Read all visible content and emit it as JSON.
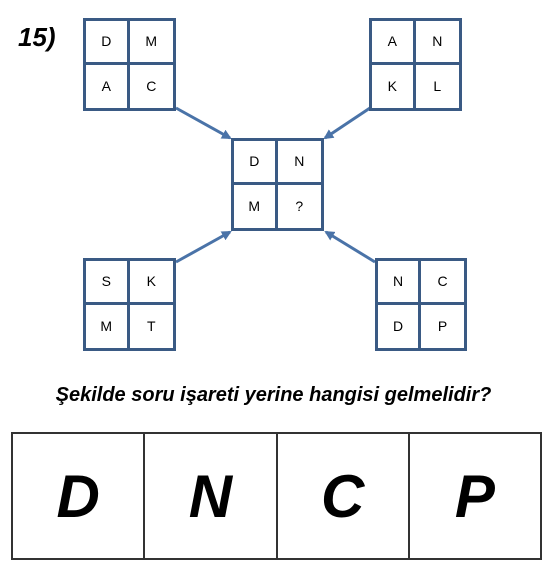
{
  "question_number": "15)",
  "grids": {
    "top_left": [
      "D",
      "M",
      "A",
      "C"
    ],
    "top_right": [
      "A",
      "N",
      "K",
      "L"
    ],
    "center": [
      "D",
      "N",
      "M",
      "?"
    ],
    "bottom_left": [
      "S",
      "K",
      "M",
      "T"
    ],
    "bottom_right": [
      "N",
      "C",
      "D",
      "P"
    ]
  },
  "question_text": "Şekilde soru işareti yerine hangisi gelmelidir?",
  "options": [
    "D",
    "N",
    "C",
    "P"
  ],
  "colors": {
    "grid_border": "#3a5a84",
    "arrow": "#4a73a8"
  }
}
